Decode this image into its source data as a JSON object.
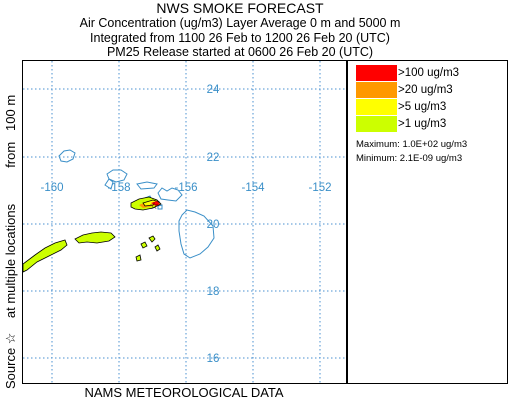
{
  "title": {
    "line1": "NWS SMOKE FORECAST",
    "line2": "Air Concentration (ug/m3) Layer Average    0 m and  5000 m",
    "line3": "Integrated from 1100 26 Feb to 1200 26 Feb 20 (UTC)",
    "line4": "PM25 Release started at 0600 26 Feb 20 (UTC)"
  },
  "side_label": "Source ☆    at multiple locations          from   100 m",
  "bottom_label": "NAMS METEOROLOGICAL DATA",
  "map": {
    "lat_labels": [
      "24",
      "22",
      "20",
      "18",
      "16"
    ],
    "lon_labels": [
      "-160",
      "-158",
      "-156",
      "-154",
      "-152"
    ],
    "source_marker": "☆",
    "colors": {
      "gridline": "#4a90d0",
      "coastline": "#3a8fc8",
      "label": "#3a8fc8"
    }
  },
  "legend": {
    "items": [
      {
        "label": ">100 ug/m3",
        "color": "#ff0000"
      },
      {
        "label": ">20 ug/m3",
        "color": "#ff9900"
      },
      {
        "label": ">5 ug/m3",
        "color": "#ffff00"
      },
      {
        "label": ">1 ug/m3",
        "color": "#ccff00"
      }
    ],
    "maximum": "Maximum: 1.0E+02 ug/m3",
    "minimum": "Minimum: 2.1E-09 ug/m3"
  }
}
